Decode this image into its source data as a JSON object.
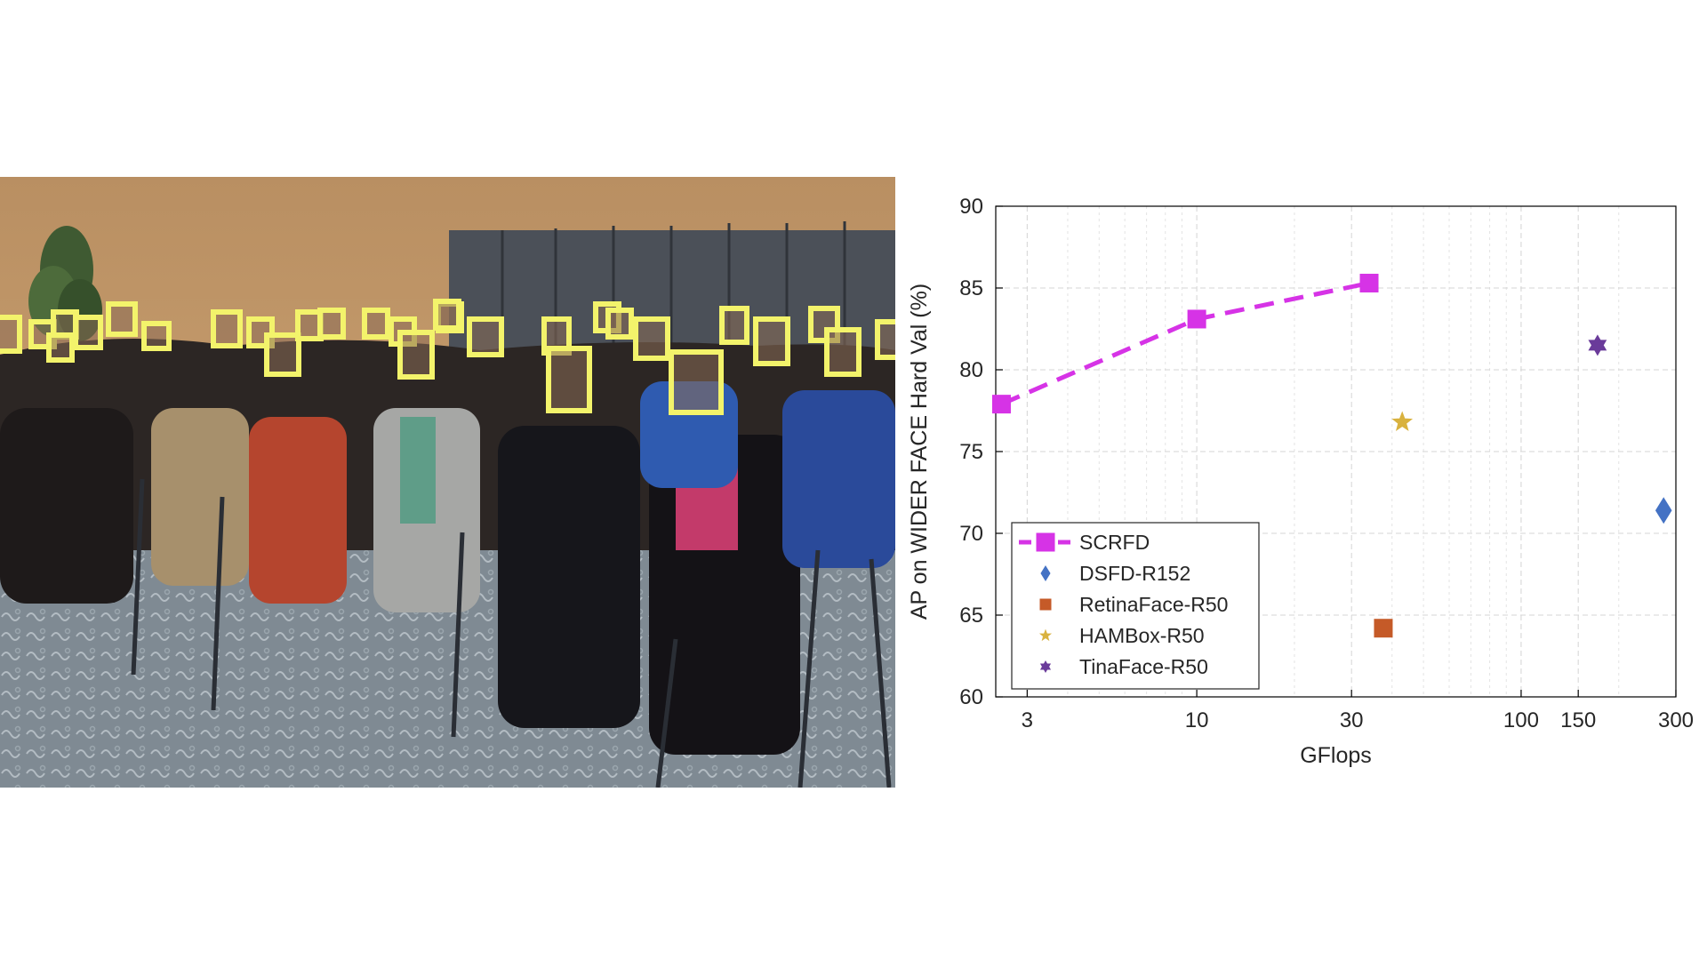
{
  "photo": {
    "face_boxes_color": "#f3f36b"
  },
  "chart_data": {
    "type": "scatter",
    "xlabel": "GFlops",
    "ylabel": "AP on WIDER FACE Hard Val (%)",
    "xscale": "log",
    "xlim": [
      2.4,
      300
    ],
    "ylim": [
      60,
      90
    ],
    "xticks": [
      3,
      10,
      30,
      100,
      150,
      300
    ],
    "xtick_labels": [
      "3",
      "10",
      "30",
      "100",
      "150",
      "300"
    ],
    "yticks": [
      60,
      65,
      70,
      75,
      80,
      85,
      90
    ],
    "ytick_labels": [
      "60",
      "65",
      "70",
      "75",
      "80",
      "85",
      "90"
    ],
    "grid": true,
    "legend_position": "bottom-left",
    "series": [
      {
        "name": "SCRFD",
        "marker": "square",
        "line": "dashed",
        "color": "#d633e6",
        "x": [
          2.5,
          10,
          34
        ],
        "y": [
          77.9,
          83.1,
          85.3
        ]
      },
      {
        "name": "DSFD-R152",
        "marker": "diamond",
        "color": "#4472c4",
        "x": [
          275
        ],
        "y": [
          71.4
        ]
      },
      {
        "name": "RetinaFace-R50",
        "marker": "square",
        "color": "#c55a28",
        "x": [
          37.6
        ],
        "y": [
          64.2
        ]
      },
      {
        "name": "HAMBox-R50",
        "marker": "star",
        "color": "#d9b23f",
        "x": [
          43
        ],
        "y": [
          76.8
        ]
      },
      {
        "name": "TinaFace-R50",
        "marker": "hexagram",
        "color": "#6a3b9a",
        "x": [
          172
        ],
        "y": [
          81.5
        ]
      }
    ]
  }
}
